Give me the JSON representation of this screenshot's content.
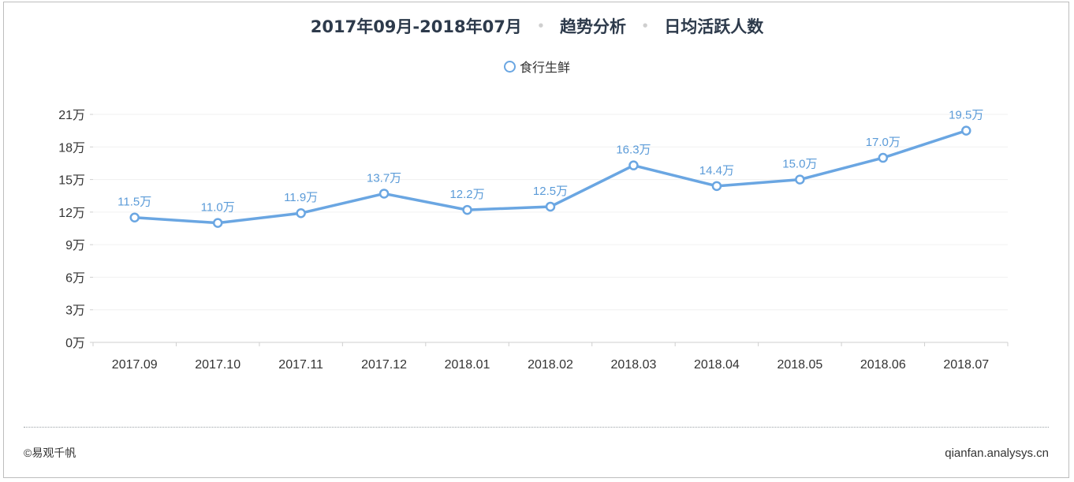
{
  "chart_data": {
    "type": "line",
    "title_parts": [
      "2017年09月-2018年07月",
      "趋势分析",
      "日均活跃人数"
    ],
    "title_separator": "•",
    "categories": [
      "2017.09",
      "2017.10",
      "2017.11",
      "2017.12",
      "2018.01",
      "2018.02",
      "2018.03",
      "2018.04",
      "2018.05",
      "2018.06",
      "2018.07"
    ],
    "series": [
      {
        "name": "食行生鲜",
        "values": [
          11.5,
          11.0,
          11.9,
          13.7,
          12.2,
          12.5,
          16.3,
          14.4,
          15.0,
          17.0,
          19.5
        ],
        "labels": [
          "11.5万",
          "11.0万",
          "11.9万",
          "13.7万",
          "12.2万",
          "12.5万",
          "16.3万",
          "14.4万",
          "15.0万",
          "17.0万",
          "19.5万"
        ],
        "color": "#6aa6e2"
      }
    ],
    "y_ticks": [
      0,
      3,
      6,
      9,
      12,
      15,
      18,
      21
    ],
    "y_tick_labels": [
      "0万",
      "3万",
      "6万",
      "9万",
      "12万",
      "15万",
      "18万",
      "21万"
    ],
    "ylim": [
      0,
      21
    ],
    "grid": true,
    "legend_position": "top-center"
  },
  "footer": {
    "copyright": "©易观千帆",
    "site": "qianfan.analysys.cn"
  }
}
